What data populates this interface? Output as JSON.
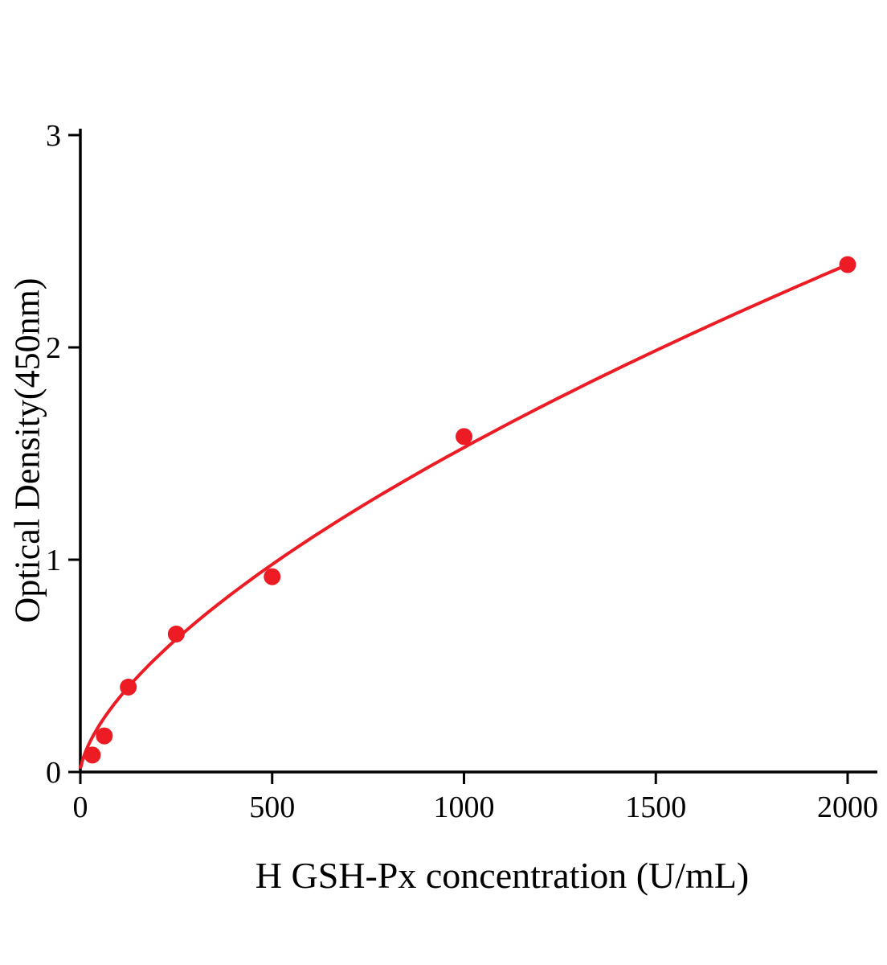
{
  "chart_data": {
    "type": "scatter",
    "title": "",
    "xlabel": "H GSH-Px concentration (U/mL)",
    "ylabel": "Optical Density(450nm)",
    "x": [
      31.25,
      62.5,
      125,
      250,
      500,
      1000,
      2000
    ],
    "y": [
      0.08,
      0.17,
      0.4,
      0.65,
      0.92,
      1.58,
      2.39
    ],
    "fit": {
      "type": "power",
      "a": 0.01779,
      "b": 0.6447
    },
    "xlim": [
      0,
      2075
    ],
    "ylim": [
      0,
      3
    ],
    "x_ticks": [
      0,
      500,
      1000,
      1500,
      2000
    ],
    "y_ticks": [
      0,
      1,
      2,
      3
    ],
    "grid": false,
    "legend": "none",
    "point_color": "#ed1c24",
    "line_color": "#ed1c24",
    "axis_color": "#000000"
  }
}
